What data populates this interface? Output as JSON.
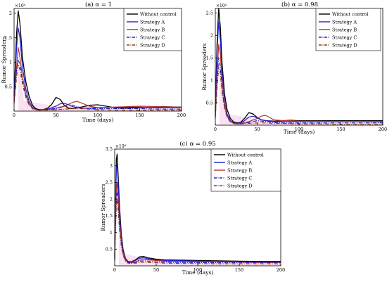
{
  "colors": {
    "without_control": "#000000",
    "strategy_a": "#1f1fd6",
    "strategy_b": "#b5332a",
    "strategy_c": "#1f1fd6",
    "strategy_d": "#8a3a12",
    "pink_band": "#f2a6d8"
  },
  "chart_data": [
    {
      "type": "line",
      "title": "(a) α = 1",
      "xlabel": "Time (days)",
      "ylabel": "Rumor Spreaders",
      "exponent_label": "×10⁴",
      "xlim": [
        0,
        200
      ],
      "ylim": [
        0,
        2.1
      ],
      "x_ticks": [
        0,
        50,
        100,
        150,
        200
      ],
      "y_ticks": [
        0.5,
        1,
        1.5,
        2
      ],
      "legend_placement": "top-right",
      "series": [
        {
          "name": "Without control",
          "style": "solid",
          "x": [
            0,
            3,
            5,
            7,
            10,
            14,
            18,
            22,
            26,
            30,
            35,
            40,
            45,
            50,
            55,
            60,
            65,
            70,
            80,
            90,
            100,
            110,
            120,
            130,
            150,
            175,
            200
          ],
          "y": [
            0.3,
            1.6,
            2.05,
            1.8,
            1.1,
            0.6,
            0.3,
            0.12,
            0.05,
            0.03,
            0.03,
            0.06,
            0.14,
            0.28,
            0.24,
            0.12,
            0.06,
            0.05,
            0.08,
            0.12,
            0.13,
            0.1,
            0.07,
            0.06,
            0.07,
            0.09,
            0.08
          ]
        },
        {
          "name": "Strategy A",
          "style": "solid",
          "x": [
            0,
            3,
            5,
            7,
            10,
            14,
            18,
            22,
            26,
            30,
            40,
            50,
            55,
            60,
            65,
            70,
            80,
            90,
            100,
            120,
            150,
            175,
            200
          ],
          "y": [
            0.25,
            1.3,
            1.7,
            1.5,
            0.9,
            0.45,
            0.2,
            0.08,
            0.03,
            0.02,
            0.04,
            0.1,
            0.15,
            0.16,
            0.13,
            0.09,
            0.06,
            0.06,
            0.07,
            0.08,
            0.08,
            0.07,
            0.07
          ]
        },
        {
          "name": "Strategy B",
          "style": "solid",
          "x": [
            0,
            3,
            5,
            7,
            10,
            14,
            18,
            22,
            26,
            30,
            40,
            50,
            60,
            70,
            75,
            80,
            90,
            100,
            120,
            150,
            175,
            200
          ],
          "y": [
            0.2,
            0.9,
            1.3,
            1.1,
            0.7,
            0.35,
            0.15,
            0.06,
            0.03,
            0.02,
            0.03,
            0.06,
            0.1,
            0.18,
            0.2,
            0.17,
            0.1,
            0.07,
            0.08,
            0.1,
            0.09,
            0.08
          ]
        },
        {
          "name": "Strategy C",
          "style": "dashdot",
          "x": [
            0,
            3,
            5,
            7,
            10,
            14,
            18,
            22,
            26,
            30,
            40,
            50,
            60,
            65,
            70,
            80,
            90,
            100,
            120,
            150,
            175,
            200
          ],
          "y": [
            0.2,
            0.85,
            1.05,
            0.95,
            0.6,
            0.3,
            0.13,
            0.05,
            0.03,
            0.02,
            0.03,
            0.05,
            0.1,
            0.14,
            0.12,
            0.07,
            0.05,
            0.05,
            0.05,
            0.05,
            0.04,
            0.04
          ]
        },
        {
          "name": "Strategy D",
          "style": "dashdot",
          "x": [
            0,
            3,
            5,
            7,
            10,
            14,
            18,
            22,
            26,
            30,
            40,
            50,
            60,
            70,
            80,
            90,
            100,
            120,
            150,
            175,
            200
          ],
          "y": [
            0.15,
            0.7,
            0.95,
            0.85,
            0.55,
            0.28,
            0.12,
            0.05,
            0.03,
            0.02,
            0.02,
            0.03,
            0.04,
            0.05,
            0.05,
            0.04,
            0.03,
            0.02,
            0.02,
            0.02,
            0.02
          ]
        }
      ]
    },
    {
      "type": "line",
      "title": "(b) α = 0.98",
      "xlabel": "Time (days)",
      "ylabel": "Rumor Spreaders",
      "exponent_label": "×10⁴",
      "xlim": [
        0,
        200
      ],
      "ylim": [
        0,
        2.6
      ],
      "x_ticks": [
        0,
        50,
        100,
        150,
        200
      ],
      "y_ticks": [
        0.5,
        1,
        1.5,
        2,
        2.5
      ],
      "legend_placement": "top-right",
      "series": [
        {
          "name": "Without control",
          "style": "solid",
          "x": [
            0,
            2,
            4,
            6,
            8,
            11,
            14,
            18,
            22,
            26,
            30,
            35,
            40,
            45,
            50,
            55,
            60,
            70,
            80,
            90,
            100,
            120,
            150,
            175,
            200
          ],
          "y": [
            0.3,
            1.8,
            2.6,
            2.2,
            1.4,
            0.7,
            0.35,
            0.15,
            0.07,
            0.05,
            0.06,
            0.15,
            0.28,
            0.25,
            0.17,
            0.12,
            0.1,
            0.09,
            0.1,
            0.11,
            0.1,
            0.1,
            0.1,
            0.1,
            0.1
          ]
        },
        {
          "name": "Strategy A",
          "style": "solid",
          "x": [
            0,
            2,
            4,
            6,
            8,
            11,
            14,
            18,
            22,
            26,
            30,
            35,
            40,
            45,
            50,
            55,
            60,
            70,
            80,
            100,
            120,
            150,
            175,
            200
          ],
          "y": [
            0.25,
            1.6,
            2.3,
            1.9,
            1.2,
            0.55,
            0.25,
            0.1,
            0.05,
            0.04,
            0.05,
            0.1,
            0.18,
            0.2,
            0.16,
            0.12,
            0.1,
            0.08,
            0.08,
            0.08,
            0.08,
            0.08,
            0.08,
            0.07
          ]
        },
        {
          "name": "Strategy B",
          "style": "solid",
          "x": [
            0,
            2,
            4,
            6,
            8,
            11,
            14,
            18,
            22,
            26,
            30,
            40,
            50,
            55,
            60,
            65,
            70,
            80,
            90,
            100,
            120,
            150,
            175,
            200
          ],
          "y": [
            0.2,
            1.1,
            1.8,
            1.6,
            1.0,
            0.5,
            0.22,
            0.09,
            0.04,
            0.03,
            0.04,
            0.08,
            0.15,
            0.2,
            0.22,
            0.17,
            0.12,
            0.1,
            0.1,
            0.09,
            0.09,
            0.08,
            0.08,
            0.08
          ]
        },
        {
          "name": "Strategy C",
          "style": "dashdot",
          "x": [
            0,
            2,
            4,
            6,
            8,
            11,
            14,
            18,
            22,
            26,
            30,
            40,
            50,
            60,
            70,
            80,
            100,
            120,
            150,
            175,
            200
          ],
          "y": [
            0.2,
            1.0,
            1.5,
            1.3,
            0.85,
            0.42,
            0.2,
            0.08,
            0.04,
            0.03,
            0.03,
            0.06,
            0.1,
            0.08,
            0.06,
            0.05,
            0.05,
            0.05,
            0.05,
            0.05,
            0.05
          ]
        },
        {
          "name": "Strategy D",
          "style": "dashdot",
          "x": [
            0,
            2,
            4,
            6,
            8,
            11,
            14,
            18,
            22,
            26,
            30,
            40,
            50,
            60,
            70,
            80,
            100,
            120,
            150,
            175,
            200
          ],
          "y": [
            0.15,
            0.8,
            1.3,
            1.15,
            0.75,
            0.38,
            0.17,
            0.07,
            0.04,
            0.03,
            0.03,
            0.04,
            0.05,
            0.05,
            0.04,
            0.04,
            0.03,
            0.03,
            0.02,
            0.02,
            0.02
          ]
        }
      ]
    },
    {
      "type": "line",
      "title": "(c) α = 0.95",
      "xlabel": "Time (days)",
      "ylabel": "Rumor Spreaders",
      "exponent_label": "×10⁴",
      "xlim": [
        0,
        200
      ],
      "ylim": [
        0,
        3.5
      ],
      "x_ticks": [
        0,
        50,
        100,
        150,
        200
      ],
      "y_ticks": [
        0.5,
        1,
        1.5,
        2,
        2.5,
        3,
        3.5
      ],
      "legend_placement": "top-right",
      "series": [
        {
          "name": "Without control",
          "style": "solid",
          "x": [
            0,
            1,
            2,
            3,
            4,
            6,
            8,
            10,
            13,
            16,
            20,
            25,
            30,
            35,
            40,
            50,
            60,
            80,
            100,
            125,
            150,
            175,
            200
          ],
          "y": [
            0.3,
            2.0,
            3.2,
            3.35,
            2.8,
            1.7,
            0.95,
            0.5,
            0.22,
            0.13,
            0.12,
            0.18,
            0.27,
            0.28,
            0.24,
            0.2,
            0.18,
            0.17,
            0.16,
            0.15,
            0.14,
            0.13,
            0.13
          ]
        },
        {
          "name": "Strategy A",
          "style": "solid",
          "x": [
            0,
            1,
            2,
            3,
            4,
            6,
            8,
            10,
            13,
            16,
            20,
            25,
            30,
            35,
            40,
            50,
            60,
            80,
            100,
            125,
            150,
            175,
            200
          ],
          "y": [
            0.25,
            1.8,
            2.9,
            3.05,
            2.55,
            1.5,
            0.85,
            0.45,
            0.2,
            0.12,
            0.11,
            0.16,
            0.23,
            0.24,
            0.21,
            0.18,
            0.16,
            0.15,
            0.14,
            0.13,
            0.12,
            0.11,
            0.11
          ]
        },
        {
          "name": "Strategy B",
          "style": "solid",
          "x": [
            0,
            1,
            2,
            3,
            4,
            6,
            8,
            10,
            13,
            16,
            20,
            25,
            30,
            35,
            40,
            50,
            60,
            80,
            100,
            125,
            150,
            175,
            200
          ],
          "y": [
            0.2,
            1.4,
            2.3,
            2.5,
            2.1,
            1.3,
            0.75,
            0.4,
            0.18,
            0.1,
            0.09,
            0.12,
            0.17,
            0.19,
            0.18,
            0.16,
            0.14,
            0.13,
            0.12,
            0.12,
            0.11,
            0.1,
            0.1
          ]
        },
        {
          "name": "Strategy C",
          "style": "dashdot",
          "x": [
            0,
            1,
            2,
            3,
            4,
            6,
            8,
            10,
            13,
            16,
            20,
            25,
            30,
            35,
            40,
            50,
            60,
            80,
            100,
            125,
            150,
            175,
            200
          ],
          "y": [
            0.2,
            1.3,
            2.1,
            2.25,
            1.9,
            1.15,
            0.65,
            0.35,
            0.16,
            0.09,
            0.08,
            0.1,
            0.14,
            0.15,
            0.14,
            0.12,
            0.11,
            0.1,
            0.1,
            0.09,
            0.09,
            0.09,
            0.09
          ]
        },
        {
          "name": "Strategy D",
          "style": "dashdot",
          "x": [
            0,
            1,
            2,
            3,
            4,
            6,
            8,
            10,
            13,
            16,
            20,
            25,
            30,
            35,
            40,
            50,
            60,
            80,
            100,
            125,
            150,
            175,
            200
          ],
          "y": [
            0.15,
            1.1,
            1.85,
            2.0,
            1.7,
            1.05,
            0.6,
            0.32,
            0.15,
            0.08,
            0.07,
            0.08,
            0.1,
            0.11,
            0.1,
            0.09,
            0.08,
            0.07,
            0.07,
            0.06,
            0.06,
            0.06,
            0.06
          ]
        }
      ]
    }
  ]
}
